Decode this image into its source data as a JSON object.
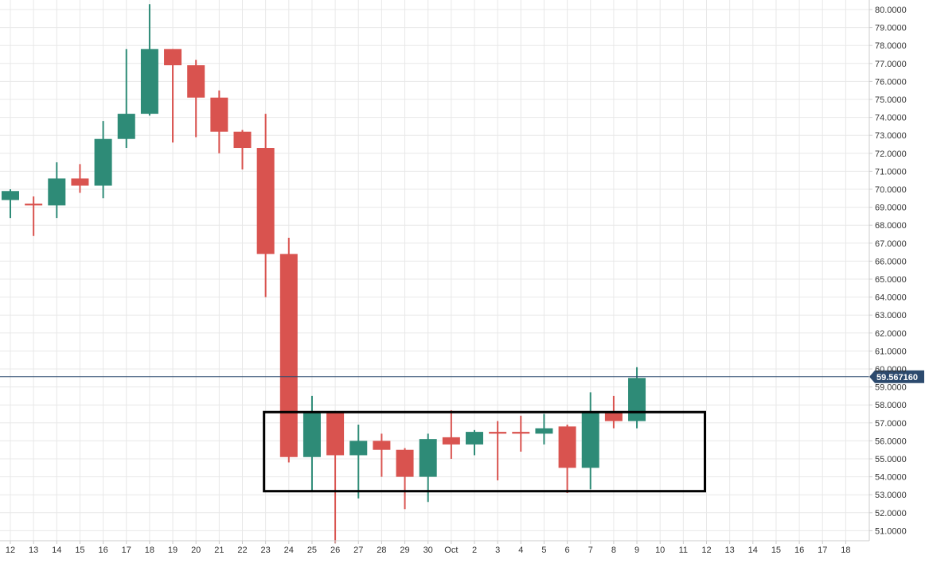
{
  "chart_data": {
    "type": "candlestick",
    "title": "",
    "xlabel": "",
    "ylabel": "",
    "ylim": [
      50.3,
      80.5
    ],
    "grid": true,
    "y_ticks": [
      "80.0000",
      "79.0000",
      "78.0000",
      "77.0000",
      "76.0000",
      "75.0000",
      "74.0000",
      "73.0000",
      "72.0000",
      "71.0000",
      "70.0000",
      "69.0000",
      "68.0000",
      "67.0000",
      "66.0000",
      "65.0000",
      "64.0000",
      "63.0000",
      "62.0000",
      "61.0000",
      "60.0000",
      "59.0000",
      "58.0000",
      "57.0000",
      "56.0000",
      "55.0000",
      "54.0000",
      "53.0000",
      "52.0000",
      "51.0000"
    ],
    "x_ticks": [
      "12",
      "13",
      "14",
      "15",
      "16",
      "17",
      "18",
      "19",
      "20",
      "21",
      "22",
      "23",
      "24",
      "25",
      "26",
      "27",
      "28",
      "29",
      "30",
      "Oct",
      "2",
      "3",
      "4",
      "5",
      "6",
      "7",
      "8",
      "9",
      "10",
      "11",
      "12",
      "13",
      "14",
      "15",
      "16",
      "17",
      "18"
    ],
    "last_price": {
      "value": 59.56716,
      "label": "59.567160"
    },
    "candles": [
      {
        "date": "12",
        "open": 69.4,
        "high": 70.0,
        "low": 68.4,
        "close": 69.9
      },
      {
        "date": "13",
        "open": 69.2,
        "high": 69.6,
        "low": 67.4,
        "close": 69.1
      },
      {
        "date": "14",
        "open": 69.1,
        "high": 71.5,
        "low": 68.4,
        "close": 70.6
      },
      {
        "date": "15",
        "open": 70.6,
        "high": 71.4,
        "low": 69.8,
        "close": 70.2
      },
      {
        "date": "16",
        "open": 70.2,
        "high": 73.8,
        "low": 69.5,
        "close": 72.8
      },
      {
        "date": "17",
        "open": 72.8,
        "high": 77.8,
        "low": 72.3,
        "close": 74.2
      },
      {
        "date": "18",
        "open": 74.2,
        "high": 80.3,
        "low": 74.1,
        "close": 77.8
      },
      {
        "date": "19",
        "open": 77.8,
        "high": 77.8,
        "low": 72.6,
        "close": 76.9
      },
      {
        "date": "20",
        "open": 76.9,
        "high": 77.2,
        "low": 72.9,
        "close": 75.1
      },
      {
        "date": "21",
        "open": 75.1,
        "high": 75.5,
        "low": 72.0,
        "close": 73.2
      },
      {
        "date": "22",
        "open": 73.2,
        "high": 73.3,
        "low": 71.1,
        "close": 72.3
      },
      {
        "date": "23",
        "open": 72.3,
        "high": 74.2,
        "low": 64.0,
        "close": 66.4
      },
      {
        "date": "24",
        "open": 66.4,
        "high": 67.3,
        "low": 54.8,
        "close": 55.1
      },
      {
        "date": "25",
        "open": 55.1,
        "high": 58.5,
        "low": 53.2,
        "close": 57.6
      },
      {
        "date": "26",
        "open": 57.6,
        "high": 57.6,
        "low": 50.3,
        "close": 55.2
      },
      {
        "date": "27",
        "open": 55.2,
        "high": 56.9,
        "low": 52.8,
        "close": 56.0
      },
      {
        "date": "28",
        "open": 56.0,
        "high": 56.4,
        "low": 54.0,
        "close": 55.5
      },
      {
        "date": "29",
        "open": 55.5,
        "high": 55.6,
        "low": 52.2,
        "close": 54.0
      },
      {
        "date": "30",
        "open": 54.0,
        "high": 56.4,
        "low": 52.6,
        "close": 56.1
      },
      {
        "date": "Oct",
        "open": 56.2,
        "high": 57.7,
        "low": 55.0,
        "close": 55.8
      },
      {
        "date": "2",
        "open": 55.8,
        "high": 56.6,
        "low": 55.2,
        "close": 56.5
      },
      {
        "date": "3",
        "open": 56.5,
        "high": 57.1,
        "low": 53.8,
        "close": 56.4
      },
      {
        "date": "4",
        "open": 56.5,
        "high": 57.4,
        "low": 55.4,
        "close": 56.4
      },
      {
        "date": "5",
        "open": 56.4,
        "high": 57.5,
        "low": 55.8,
        "close": 56.7
      },
      {
        "date": "6",
        "open": 56.8,
        "high": 56.9,
        "low": 53.1,
        "close": 54.5
      },
      {
        "date": "7",
        "open": 54.5,
        "high": 58.7,
        "low": 53.3,
        "close": 57.6
      },
      {
        "date": "8",
        "open": 57.6,
        "high": 58.5,
        "low": 56.7,
        "close": 57.1
      },
      {
        "date": "9",
        "open": 57.1,
        "high": 60.1,
        "low": 56.7,
        "close": 59.5
      }
    ],
    "annotation_box": {
      "x_start": "23",
      "x_end": "12",
      "y_top": 57.6,
      "y_bottom": 53.2
    },
    "colors": {
      "up": "#2e8b77",
      "down": "#d9534f",
      "grid": "#e8e8e8",
      "axis": "#cccccc",
      "price_line": "#2c4a6e",
      "price_tag": "#2c4a6e",
      "box": "#000000"
    }
  }
}
